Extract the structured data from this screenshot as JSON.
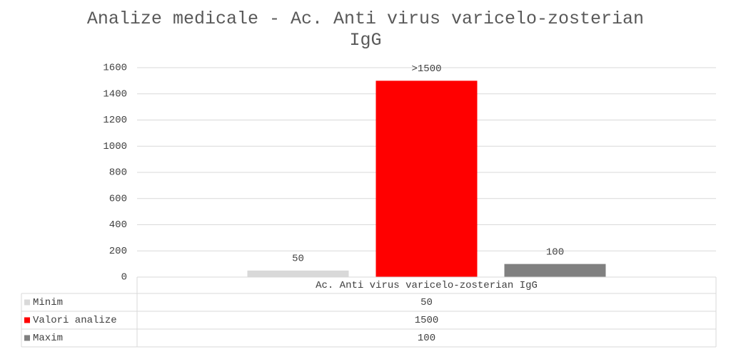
{
  "chart_data": {
    "type": "bar",
    "title": "Analize medicale - Ac. Anti virus varicelo-zosterian IgG",
    "categories": [
      "Ac. Anti virus varicelo-zosterian IgG"
    ],
    "series": [
      {
        "name": "Minim",
        "color": "#d9d9d9",
        "values": [
          50
        ]
      },
      {
        "name": "Valori analize",
        "color": "#ff0000",
        "values": [
          1500
        ],
        "value_labels": [
          ">1500"
        ]
      },
      {
        "name": "Maxim",
        "color": "#808080",
        "values": [
          100
        ]
      }
    ],
    "ylim": [
      0,
      1600
    ],
    "yticks": [
      0,
      200,
      400,
      600,
      800,
      1000,
      1200,
      1400,
      1600
    ],
    "grid": true,
    "data_table": true
  }
}
